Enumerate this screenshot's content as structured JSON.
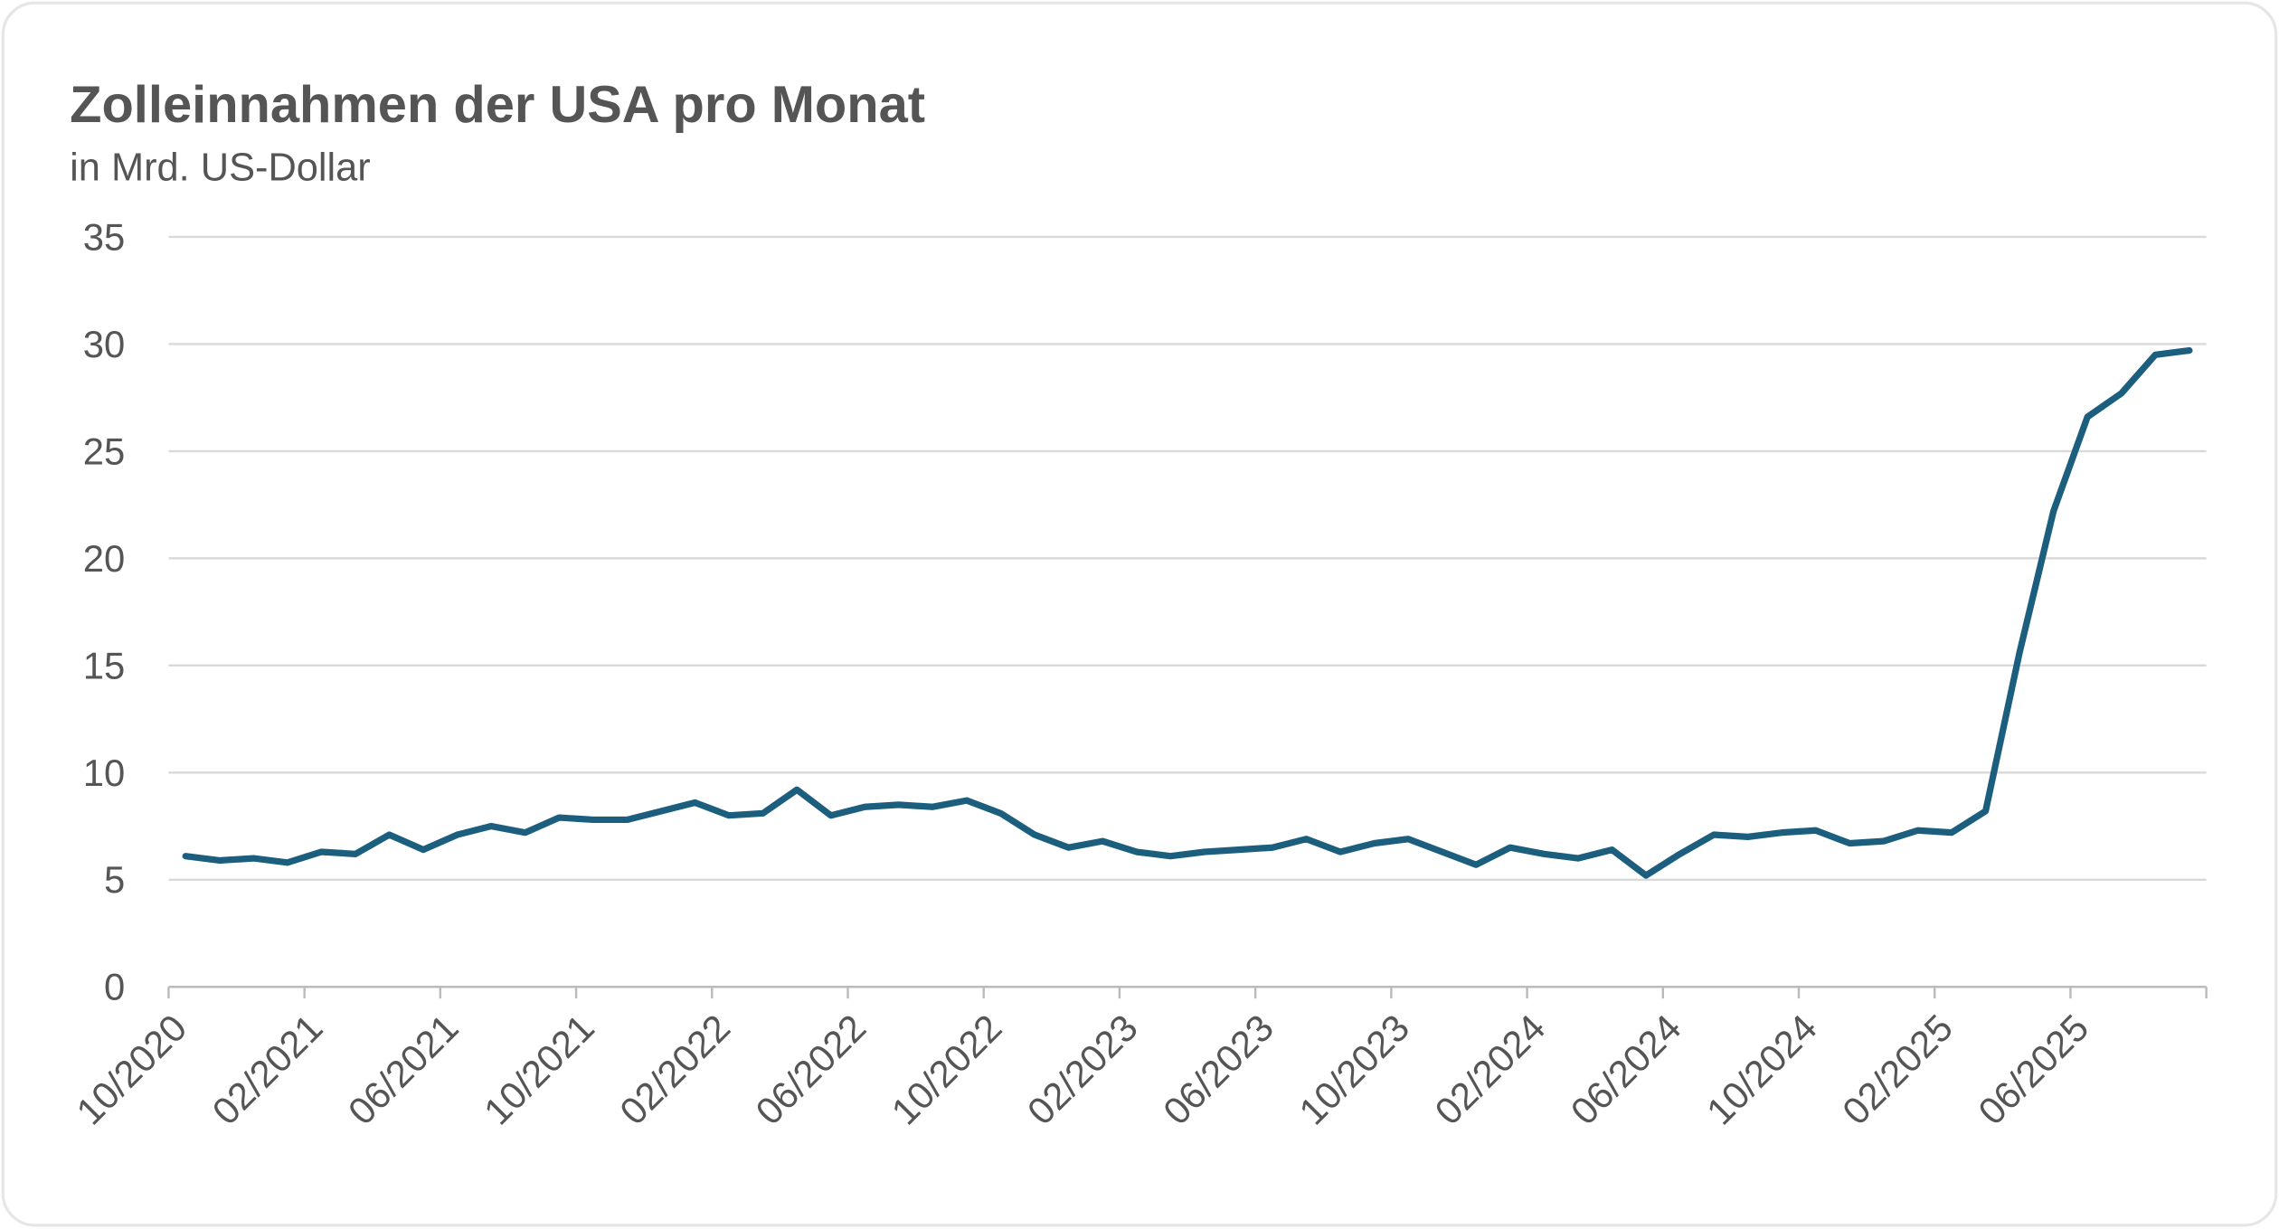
{
  "chart_data": {
    "type": "line",
    "title": "Zolleinnahmen der USA pro Monat",
    "subtitle": "in Mrd. US-Dollar",
    "categories": [
      "10/2020",
      null,
      null,
      null,
      "02/2021",
      null,
      null,
      null,
      "06/2021",
      null,
      null,
      null,
      "10/2021",
      null,
      null,
      null,
      "02/2022",
      null,
      null,
      null,
      "06/2022",
      null,
      null,
      null,
      "10/2022",
      null,
      null,
      null,
      "02/2023",
      null,
      null,
      null,
      "06/2023",
      null,
      null,
      null,
      "10/2023",
      null,
      null,
      null,
      "02/2024",
      null,
      null,
      null,
      "06/2024",
      null,
      null,
      null,
      "10/2024",
      null,
      null,
      null,
      "02/2025",
      null,
      null,
      null,
      "06/2025",
      null,
      null,
      null
    ],
    "values": [
      6.1,
      5.9,
      6.0,
      5.8,
      6.3,
      6.2,
      7.1,
      6.4,
      7.1,
      7.5,
      7.2,
      7.9,
      7.8,
      7.8,
      8.2,
      8.6,
      8.0,
      8.1,
      9.2,
      8.0,
      8.4,
      8.5,
      8.4,
      8.7,
      8.1,
      7.1,
      6.5,
      6.8,
      6.3,
      6.1,
      6.3,
      6.4,
      6.5,
      6.9,
      6.3,
      6.7,
      6.9,
      6.3,
      5.7,
      6.5,
      6.2,
      6.0,
      6.4,
      5.2,
      6.2,
      7.1,
      7.0,
      7.2,
      7.3,
      6.7,
      6.8,
      7.3,
      7.2,
      8.2,
      15.6,
      22.2,
      26.6,
      27.7,
      29.5,
      29.7
    ],
    "color": "#1b5e7e",
    "ylim": [
      0,
      35
    ],
    "yticks": [
      0,
      5,
      10,
      15,
      20,
      25,
      30,
      35
    ],
    "grid": true
  }
}
